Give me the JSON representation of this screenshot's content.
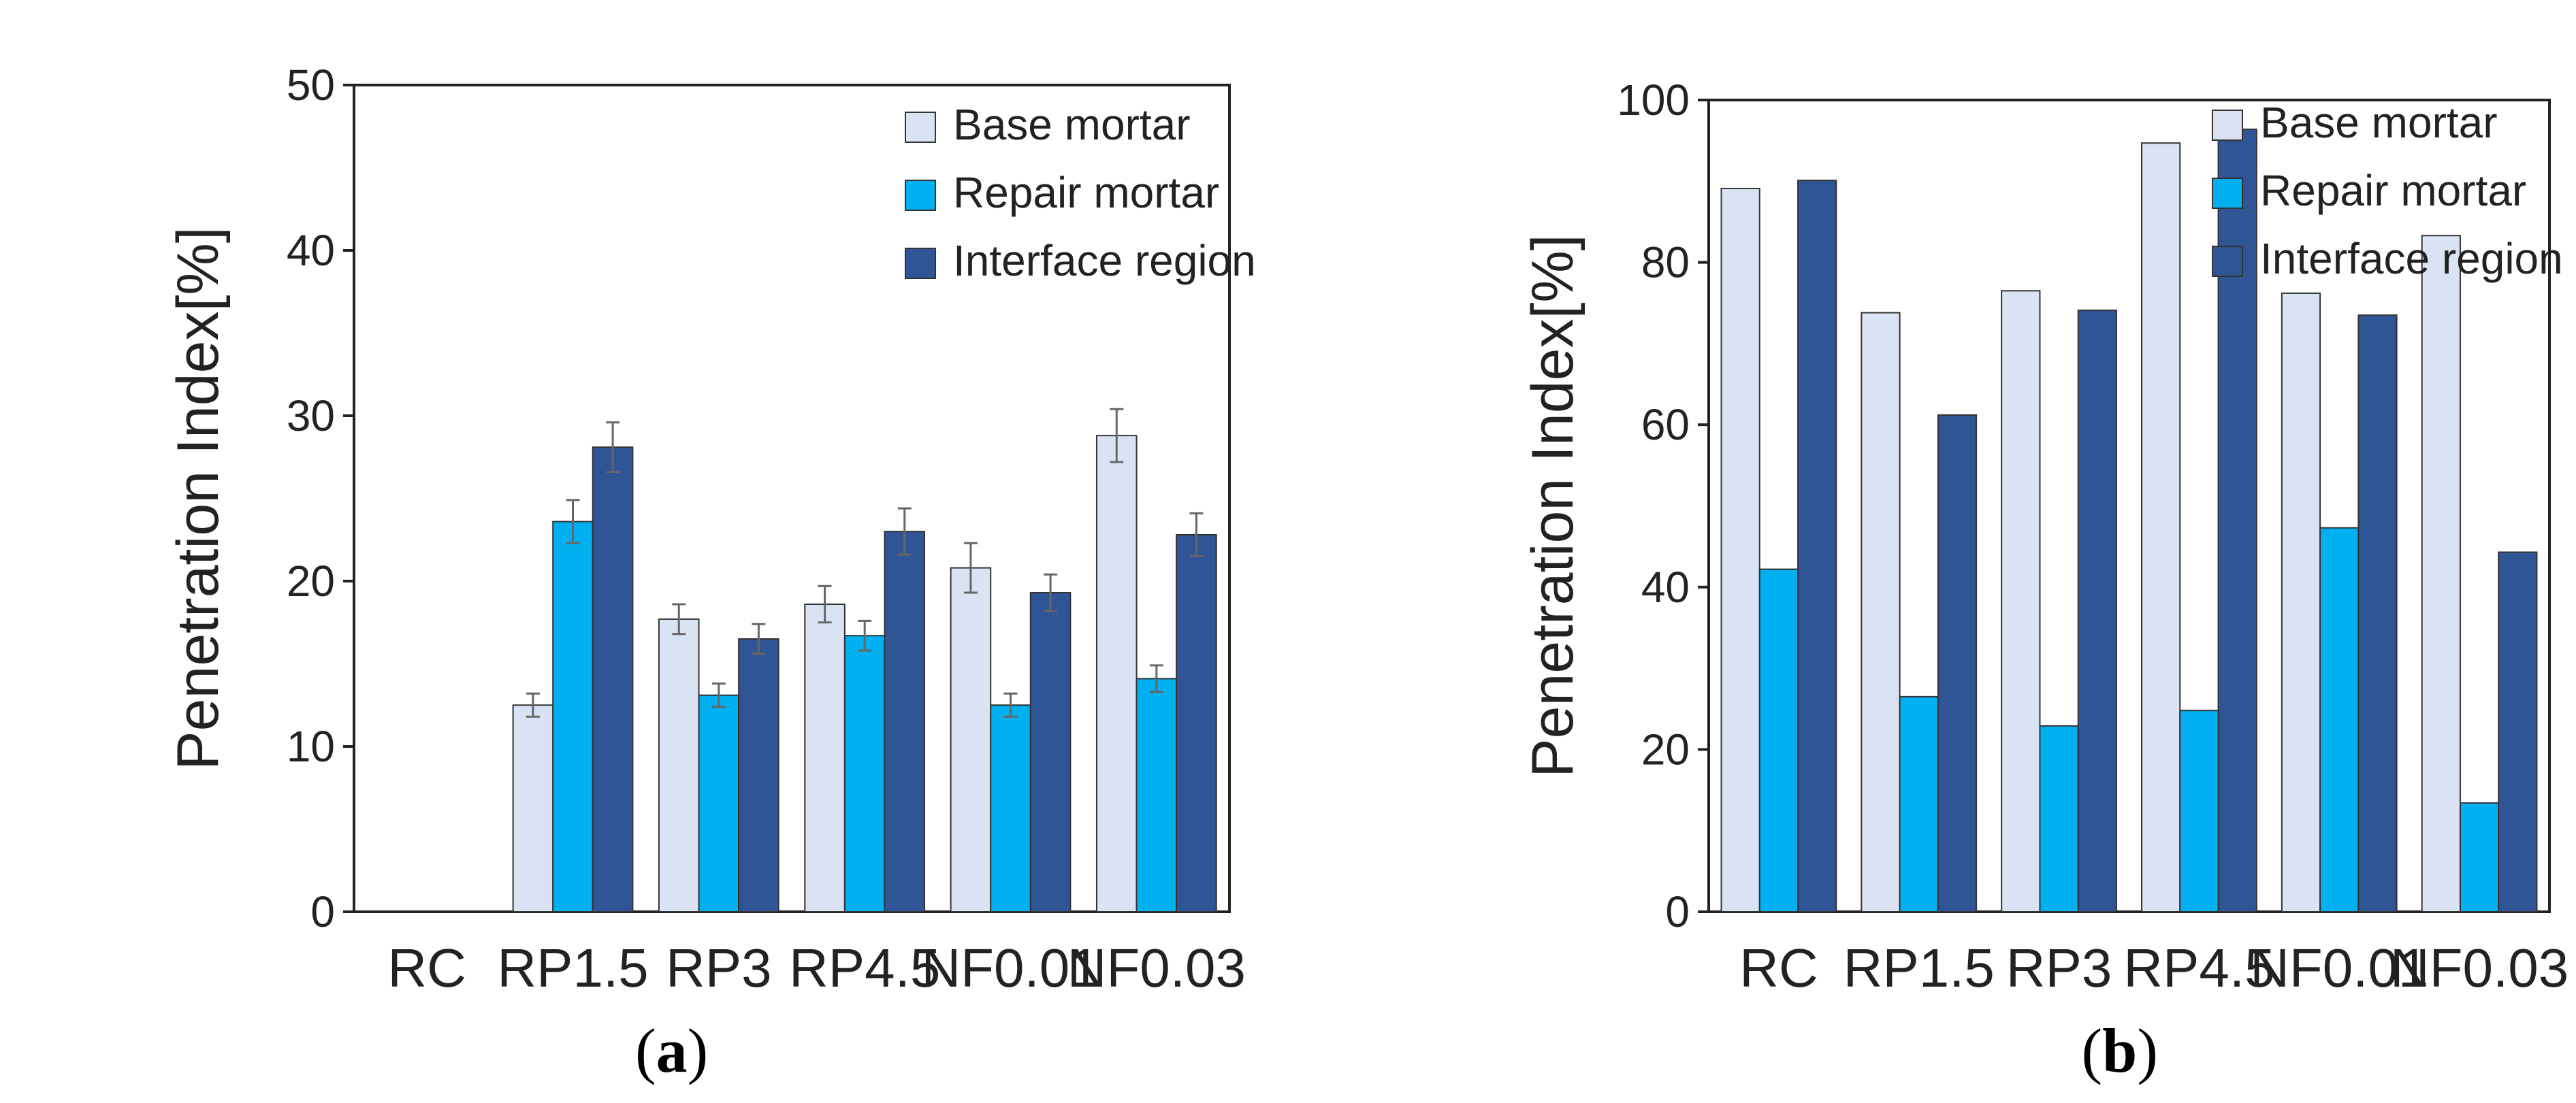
{
  "chart_data": [
    {
      "type": "bar",
      "panel_label": "a",
      "ylabel": "Penetration Index[%]",
      "ylim": [
        0,
        50
      ],
      "yticks": [
        0,
        10,
        20,
        30,
        40,
        50
      ],
      "error_bars": true,
      "legend_position": "top-right",
      "categories": [
        "RC",
        "RP1.5",
        "RP3",
        "RP4.5",
        "NF0.01",
        "NF0.03"
      ],
      "series": [
        {
          "name": "Base mortar",
          "values": [
            0,
            12.5,
            17.7,
            18.6,
            20.8,
            28.8
          ],
          "errors": [
            0,
            0.7,
            0.9,
            1.1,
            1.5,
            1.6
          ]
        },
        {
          "name": "Repair mortar",
          "values": [
            0,
            23.6,
            13.1,
            16.7,
            12.5,
            14.1
          ],
          "errors": [
            0,
            1.3,
            0.7,
            0.9,
            0.7,
            0.8
          ]
        },
        {
          "name": "Interface region",
          "values": [
            0,
            28.1,
            16.5,
            23.0,
            19.3,
            22.8
          ],
          "errors": [
            0,
            1.5,
            0.9,
            1.4,
            1.1,
            1.3
          ]
        }
      ]
    },
    {
      "type": "bar",
      "panel_label": "b",
      "ylabel": "Penetration Index[%]",
      "ylim": [
        0,
        100
      ],
      "yticks": [
        0,
        20,
        40,
        60,
        80,
        100
      ],
      "error_bars": false,
      "legend_position": "top-right",
      "categories": [
        "RC",
        "RP1.5",
        "RP3",
        "RP4.5",
        "NF0.01",
        "NF0.03"
      ],
      "series": [
        {
          "name": "Base mortar",
          "values": [
            89.1,
            73.8,
            76.5,
            94.7,
            76.2,
            83.3
          ]
        },
        {
          "name": "Repair mortar",
          "values": [
            42.2,
            26.5,
            22.9,
            24.8,
            47.3,
            13.4
          ]
        },
        {
          "name": "Interface region",
          "values": [
            90.1,
            61.2,
            74.1,
            96.4,
            73.5,
            44.3
          ]
        }
      ]
    }
  ],
  "colors": {
    "Base mortar": "#dae3f3",
    "Repair mortar": "#00b0f0",
    "Interface region": "#2f5597",
    "bar_stroke": "#333333",
    "error_bar": "#666666",
    "axis": "#222222"
  }
}
